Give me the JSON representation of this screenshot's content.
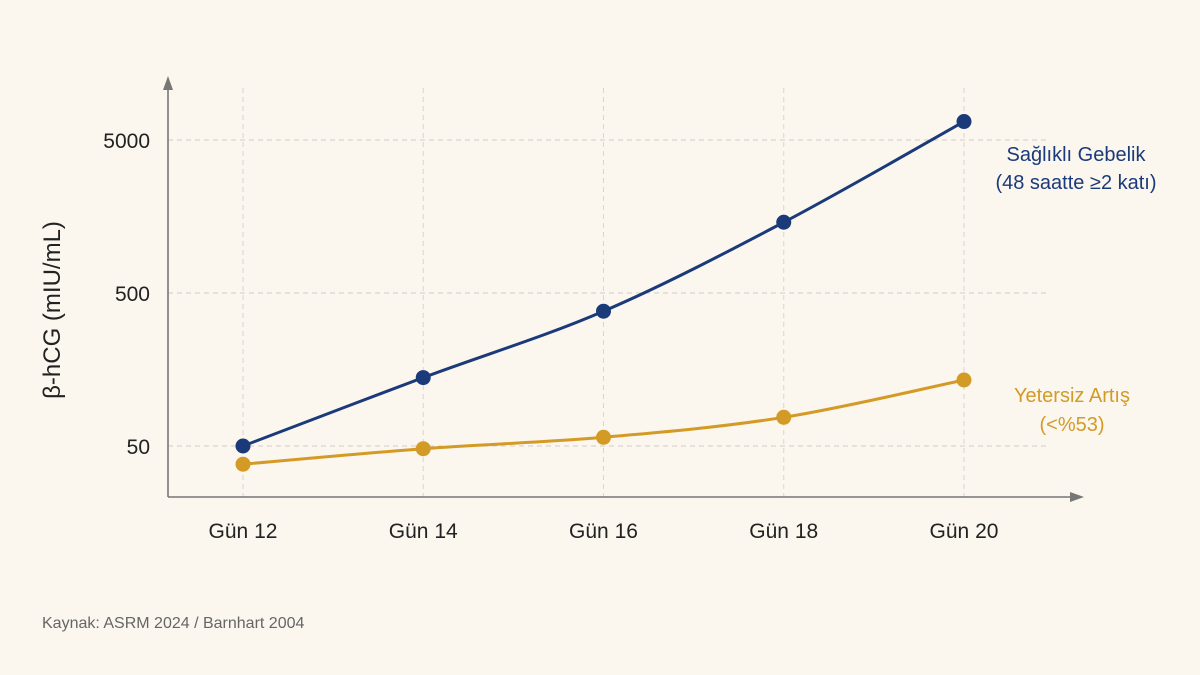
{
  "chart_data": {
    "type": "line",
    "categories": [
      "Gün 12",
      "Gün 14",
      "Gün 16",
      "Gün 18",
      "Gün 20"
    ],
    "y_scale": "log",
    "ylim": [
      25,
      7000
    ],
    "y_ticks": [
      50,
      500,
      5000
    ],
    "y_tick_labels": [
      "50",
      "500",
      "5000"
    ],
    "ylabel": "β-hCG (mIU/mL)",
    "xlabel": "",
    "grid": true,
    "series": [
      {
        "name": "Sağlıklı Gebelik",
        "name_line2": "(48 saatte ≥2 katı)",
        "color": "#1a3a7a",
        "values": [
          50,
          140,
          380,
          1450,
          6600
        ]
      },
      {
        "name": "Yetersiz Artış",
        "name_line2": "(<%53)",
        "color": "#d49a26",
        "values": [
          38,
          48,
          57,
          77,
          135
        ]
      }
    ],
    "source": "Kaynak: ASRM 2024 / Barnhart 2004"
  }
}
